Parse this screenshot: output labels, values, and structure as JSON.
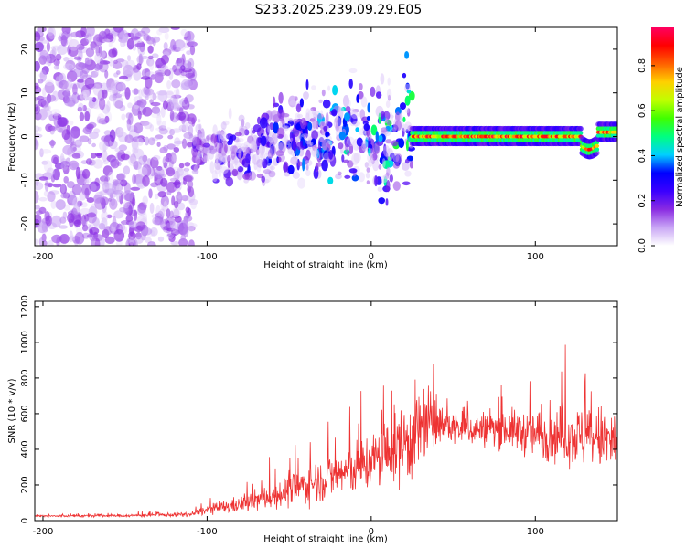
{
  "title": "S233.2025.239.09.29.E05",
  "chart_data": [
    {
      "type": "heatmap",
      "name": "spectrogram",
      "xlabel": "Height of straight line (km)",
      "ylabel": "Frequency (Hz)",
      "xlim": [
        -205,
        150
      ],
      "ylim": [
        -25,
        25
      ],
      "xticks": [
        -200,
        -100,
        0,
        100
      ],
      "yticks": [
        -20,
        -10,
        0,
        10,
        20
      ],
      "colorbar": {
        "label": "Normalized spectral amplitude",
        "ticks": [
          0.0,
          0.2,
          0.4,
          0.6,
          0.8
        ],
        "range": [
          0,
          0.97
        ],
        "colormap": [
          "#ffffff",
          "#c9a6f5",
          "#8a2be2",
          "#3a00ff",
          "#0000ff",
          "#00d0ff",
          "#00ff80",
          "#40ff00",
          "#c0ff00",
          "#ffd000",
          "#ff6000",
          "#ff0000",
          "#ff0060"
        ]
      },
      "regions": [
        {
          "x_range": [
            -205,
            -108
          ],
          "freq_spread": 25,
          "amplitude": "0.05-0.15",
          "description": "broadband noise"
        },
        {
          "x_range": [
            -108,
            25
          ],
          "freq_spread": 12,
          "amplitude": "0.1-0.35",
          "description": "scattered energy"
        },
        {
          "x_range": [
            25,
            150
          ],
          "center_freq": 0,
          "amplitude": "0.5-0.95",
          "description": "strong narrow line near 0 Hz"
        }
      ]
    },
    {
      "type": "line",
      "name": "snr",
      "xlabel": "Height of straight line (km)",
      "ylabel": "SNR (10 * v/v)",
      "xlim": [
        -205,
        150
      ],
      "ylim": [
        0,
        1230
      ],
      "xticks": [
        -200,
        -100,
        0,
        100
      ],
      "yticks": [
        0,
        200,
        400,
        600,
        800,
        1000,
        1200
      ],
      "color": "#ee3333",
      "envelope": {
        "x": [
          -205,
          -150,
          -110,
          -100,
          -80,
          -60,
          -40,
          -20,
          0,
          15,
          25,
          32,
          40,
          60,
          80,
          100,
          120,
          140,
          150
        ],
        "mean": [
          25,
          28,
          35,
          60,
          90,
          140,
          200,
          260,
          330,
          410,
          460,
          530,
          540,
          510,
          520,
          480,
          480,
          460,
          430
        ],
        "spread": [
          10,
          12,
          20,
          40,
          70,
          110,
          160,
          200,
          260,
          320,
          380,
          420,
          160,
          140,
          160,
          200,
          250,
          280,
          320
        ]
      }
    }
  ]
}
